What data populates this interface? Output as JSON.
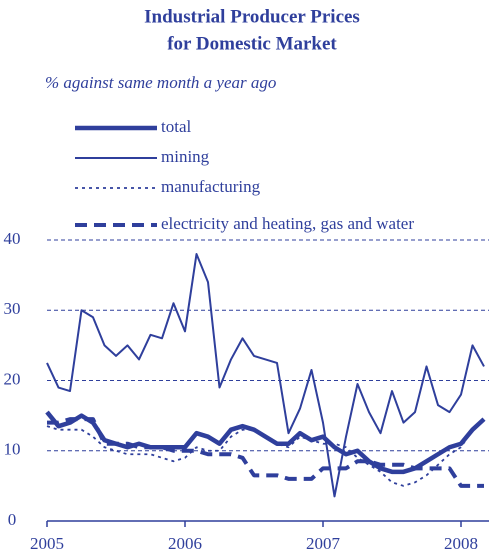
{
  "chart_data": {
    "type": "line",
    "title": "Industrial Producer Prices",
    "subtitle": "for Domestic Market",
    "y_label": "% against same month a year ago",
    "categories": [
      "2005",
      null,
      null,
      null,
      null,
      null,
      null,
      null,
      null,
      null,
      null,
      null,
      "2006",
      null,
      null,
      null,
      null,
      null,
      null,
      null,
      null,
      null,
      null,
      null,
      "2007",
      null,
      null,
      null,
      null,
      null,
      null,
      null,
      null,
      null,
      null,
      null,
      "2008",
      null,
      null
    ],
    "series": [
      {
        "name": "total",
        "color": "#2f3f9c",
        "style": "thick",
        "values": [
          15.5,
          13.5,
          14,
          15,
          14,
          11.5,
          11,
          10.5,
          11,
          10.5,
          10.5,
          10.5,
          10.5,
          12.5,
          12,
          11,
          13,
          13.5,
          13,
          12,
          11,
          11,
          12.5,
          11.5,
          12,
          10.5,
          9.5,
          10,
          8.5,
          7.5,
          7,
          7,
          7.5,
          8.5,
          9.5,
          10.5,
          11,
          13,
          14.5
        ]
      },
      {
        "name": "mining",
        "color": "#2f3f9c",
        "style": "thin",
        "values": [
          22.5,
          19,
          18.5,
          30,
          29,
          25,
          23.5,
          25,
          23,
          26.5,
          26,
          31,
          27,
          38,
          34,
          19,
          23,
          26,
          23.5,
          23,
          22.5,
          12.5,
          16,
          21.5,
          14,
          3.5,
          12,
          19.5,
          15.5,
          12.5,
          18.5,
          14,
          15.5,
          22,
          16.5,
          15.5,
          18,
          25,
          22
        ]
      },
      {
        "name": "manufacturing",
        "color": "#2f3f9c",
        "style": "dotted",
        "values": [
          13.5,
          13,
          13,
          13,
          12,
          10.5,
          10,
          9.5,
          9.5,
          9.5,
          9,
          8.5,
          9,
          10.5,
          10,
          10,
          12,
          13,
          13,
          12,
          11,
          10.5,
          12,
          11.5,
          11,
          11,
          10.5,
          9,
          8,
          7,
          5.5,
          5,
          5.5,
          6.5,
          8,
          9.5,
          10.5,
          13,
          14.5
        ]
      },
      {
        "name": "electricity and heating, gas and water",
        "color": "#2f3f9c",
        "style": "dashed",
        "values": [
          14,
          14,
          14.5,
          14.5,
          14.5,
          11,
          11,
          11,
          10.5,
          10.5,
          10.5,
          10,
          10,
          10,
          9.5,
          9.5,
          9.5,
          9,
          6.5,
          6.5,
          6.5,
          6,
          6,
          6,
          7.5,
          7.5,
          7.5,
          8.5,
          8.5,
          8,
          8,
          8,
          7.5,
          7.5,
          7.5,
          7.5,
          5,
          5,
          5
        ]
      }
    ],
    "ylim": [
      0,
      40
    ],
    "yticks": [
      0,
      10,
      20,
      30,
      40
    ],
    "grid": true
  }
}
